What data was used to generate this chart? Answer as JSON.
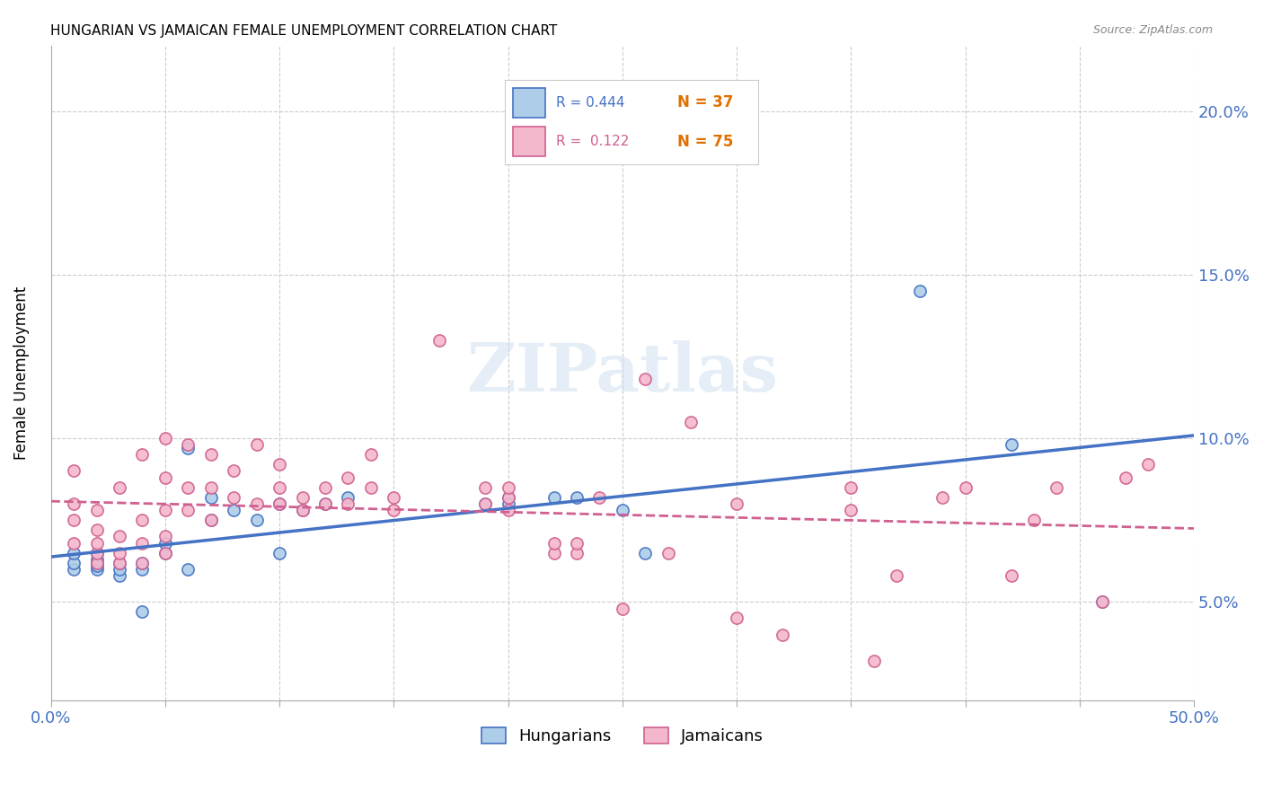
{
  "title": "HUNGARIAN VS JAMAICAN FEMALE UNEMPLOYMENT CORRELATION CHART",
  "source": "Source: ZipAtlas.com",
  "ylabel": "Female Unemployment",
  "xmin": 0.0,
  "xmax": 0.5,
  "ymin": 0.02,
  "ymax": 0.22,
  "color_hungarian_face": "#aecde8",
  "color_hungarian_edge": "#4472C4",
  "color_jamaican_face": "#f4b8cc",
  "color_jamaican_edge": "#d06090",
  "color_blue_line": "#4472C4",
  "color_pink_line": "#d06090",
  "watermark": "ZIPatlas",
  "hungarian_x": [
    0.01,
    0.01,
    0.01,
    0.02,
    0.02,
    0.02,
    0.02,
    0.02,
    0.03,
    0.03,
    0.03,
    0.04,
    0.04,
    0.04,
    0.05,
    0.05,
    0.06,
    0.06,
    0.07,
    0.07,
    0.08,
    0.09,
    0.1,
    0.1,
    0.11,
    0.12,
    0.13,
    0.19,
    0.2,
    0.2,
    0.22,
    0.23,
    0.25,
    0.26,
    0.38,
    0.42,
    0.46
  ],
  "hungarian_y": [
    0.06,
    0.062,
    0.065,
    0.06,
    0.061,
    0.062,
    0.063,
    0.065,
    0.058,
    0.06,
    0.062,
    0.047,
    0.06,
    0.062,
    0.065,
    0.068,
    0.06,
    0.097,
    0.075,
    0.082,
    0.078,
    0.075,
    0.065,
    0.08,
    0.078,
    0.08,
    0.082,
    0.08,
    0.082,
    0.08,
    0.082,
    0.082,
    0.078,
    0.065,
    0.145,
    0.098,
    0.05
  ],
  "jamaican_x": [
    0.01,
    0.01,
    0.01,
    0.01,
    0.02,
    0.02,
    0.02,
    0.02,
    0.02,
    0.03,
    0.03,
    0.03,
    0.03,
    0.04,
    0.04,
    0.04,
    0.04,
    0.05,
    0.05,
    0.05,
    0.05,
    0.05,
    0.06,
    0.06,
    0.06,
    0.07,
    0.07,
    0.07,
    0.08,
    0.08,
    0.09,
    0.09,
    0.1,
    0.1,
    0.1,
    0.11,
    0.11,
    0.12,
    0.12,
    0.13,
    0.13,
    0.14,
    0.14,
    0.15,
    0.15,
    0.17,
    0.19,
    0.19,
    0.2,
    0.2,
    0.2,
    0.22,
    0.22,
    0.23,
    0.23,
    0.24,
    0.25,
    0.26,
    0.27,
    0.28,
    0.3,
    0.3,
    0.32,
    0.35,
    0.35,
    0.36,
    0.37,
    0.39,
    0.4,
    0.42,
    0.43,
    0.44,
    0.46,
    0.47,
    0.48
  ],
  "jamaican_y": [
    0.068,
    0.075,
    0.08,
    0.09,
    0.062,
    0.065,
    0.068,
    0.072,
    0.078,
    0.062,
    0.065,
    0.07,
    0.085,
    0.062,
    0.068,
    0.075,
    0.095,
    0.065,
    0.07,
    0.078,
    0.088,
    0.1,
    0.078,
    0.085,
    0.098,
    0.075,
    0.085,
    0.095,
    0.082,
    0.09,
    0.08,
    0.098,
    0.08,
    0.085,
    0.092,
    0.078,
    0.082,
    0.08,
    0.085,
    0.08,
    0.088,
    0.085,
    0.095,
    0.078,
    0.082,
    0.13,
    0.08,
    0.085,
    0.078,
    0.082,
    0.085,
    0.065,
    0.068,
    0.065,
    0.068,
    0.082,
    0.048,
    0.118,
    0.065,
    0.105,
    0.08,
    0.045,
    0.04,
    0.078,
    0.085,
    0.032,
    0.058,
    0.082,
    0.085,
    0.058,
    0.075,
    0.085,
    0.05,
    0.088,
    0.092
  ]
}
